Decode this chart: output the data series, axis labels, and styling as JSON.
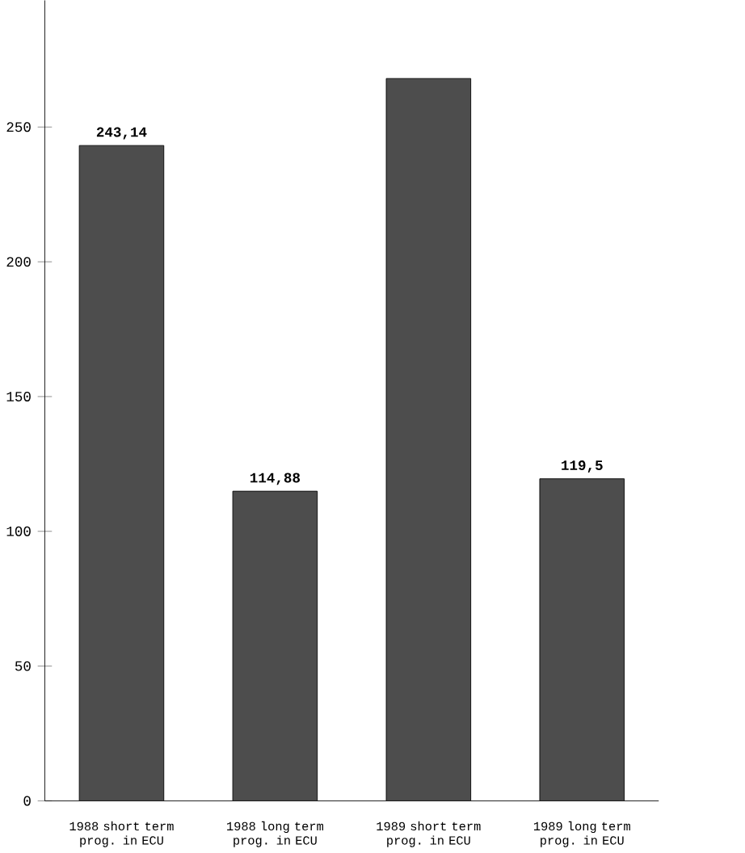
{
  "chart_data": {
    "type": "bar",
    "categories": [
      "1988 short term prog. in ECU",
      "1988 long term prog. in ECU",
      "1989 short term prog. in ECU",
      "1989 long term prog. in ECU"
    ],
    "values": [
      243.14,
      114.88,
      268,
      119.5
    ],
    "value_labels": [
      "243,14",
      "114,88",
      null,
      "119,5"
    ],
    "color": "#4d4d4d",
    "ylim": [
      0,
      297
    ],
    "yticks": [
      0,
      50,
      100,
      150,
      200,
      250
    ],
    "grid": false
  }
}
